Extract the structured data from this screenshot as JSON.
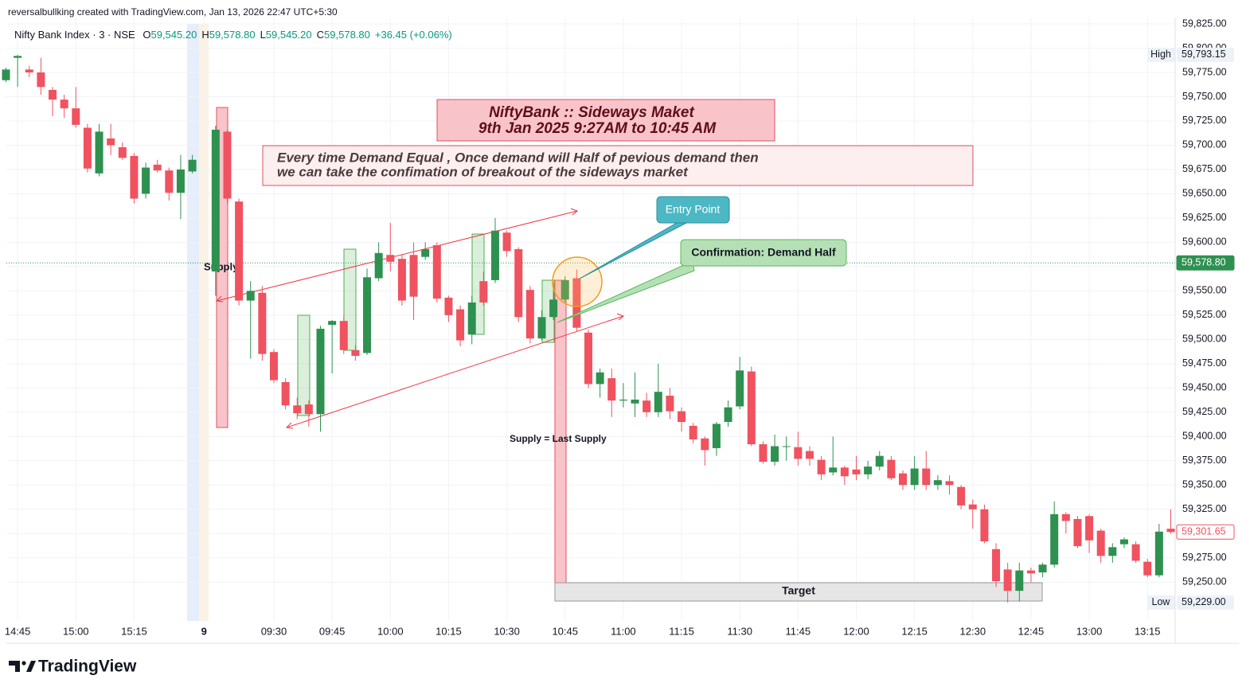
{
  "header": {
    "credit": "reversalbullking created with TradingView.com, Jan 13, 2026 22:47 UTC+5:30",
    "symbol": "Nifty Bank Index · 3 · NSE",
    "ohlc": [
      {
        "key": "O",
        "value": "59,545.20"
      },
      {
        "key": "H",
        "value": "59,578.80"
      },
      {
        "key": "L",
        "value": "59,545.20"
      },
      {
        "key": "C",
        "value": "59,578.80"
      }
    ],
    "change": "+36.45 (+0.06%)"
  },
  "footer": {
    "logo": "TradingView"
  },
  "chart_data": {
    "type": "candlestick",
    "categories": [
      null,
      "14:45",
      null,
      null,
      null,
      null,
      "15:00",
      null,
      null,
      null,
      null,
      "15:15",
      null,
      null,
      null,
      null,
      null,
      "9",
      null,
      null,
      null,
      null,
      null,
      "09:30",
      null,
      null,
      null,
      null,
      "09:45",
      null,
      null,
      null,
      null,
      "10:00",
      null,
      null,
      null,
      null,
      "10:15",
      null,
      null,
      null,
      null,
      "10:30",
      null,
      null,
      null,
      null,
      "10:45",
      null,
      null,
      null,
      null,
      "11:00",
      null,
      null,
      null,
      null,
      "11:15",
      null,
      null,
      null,
      null,
      "11:30",
      null,
      null,
      null,
      null,
      "11:45",
      null,
      null,
      null,
      null,
      "12:00",
      null,
      null,
      null,
      null,
      "12:15",
      null,
      null,
      null,
      null,
      "12:30",
      null,
      null,
      null,
      null,
      "12:45",
      null,
      null,
      null,
      null,
      "13:00",
      null,
      null,
      null,
      null,
      "13:15",
      null,
      null
    ],
    "open": [
      59767,
      59790,
      59778,
      59775,
      59757,
      59747,
      59738,
      59718,
      59671,
      59707,
      59698,
      59689,
      59650,
      59680,
      59674,
      59651,
      59673,
      null,
      59570,
      59714,
      59642,
      59540,
      59548,
      59487,
      59456,
      59432,
      59433,
      59423,
      59515,
      59519,
      59489,
      59486,
      59563,
      59587,
      59583,
      59587,
      59585,
      59597,
      59543,
      59531,
      59505,
      59560,
      59561,
      59610,
      59593,
      59551,
      59501,
      59523,
      59541,
      59563,
      59507,
      59454,
      59460,
      59437,
      59434,
      59437,
      59425,
      59442,
      59426,
      59411,
      59398,
      59388,
      59415,
      59431,
      59467,
      59392,
      59374,
      59390,
      59389,
      59385,
      59376,
      59363,
      59368,
      59366,
      59361,
      59369,
      59376,
      59362,
      59350,
      59367,
      59350,
      59354,
      59348,
      59330,
      59325,
      59284,
      59263,
      59241,
      59262,
      59260,
      59268,
      59320,
      59315,
      59318,
      59303,
      59277,
      59289,
      59289,
      59271,
      59257,
      59305
    ],
    "high": [
      59780,
      59793.15,
      59782,
      59790,
      59760,
      59752,
      59760,
      59722,
      59722,
      59722,
      59703,
      59692,
      59682,
      59685,
      59677,
      59690,
      59690,
      null,
      59720,
      59716,
      59645,
      59560,
      59555,
      59490,
      59460,
      59440,
      59437,
      59514,
      59520,
      59525,
      59494,
      59573,
      59600,
      59620,
      59588,
      59600,
      59600,
      59600,
      59545,
      59535,
      59545,
      59570,
      59625,
      59612,
      59595,
      59555,
      59530,
      59558,
      59565,
      59572,
      59510,
      59470,
      59470,
      59455,
      59466,
      59445,
      59475,
      59450,
      59430,
      59414,
      59400,
      59415,
      59437,
      59482,
      59472,
      59395,
      59402,
      59400,
      59405,
      59390,
      59380,
      59400,
      59370,
      59380,
      59375,
      59385,
      59380,
      59365,
      59380,
      59385,
      59360,
      59360,
      59350,
      59335,
      59330,
      59290,
      59270,
      59270,
      59265,
      59270,
      59333,
      59322,
      59318,
      59320,
      59305,
      59290,
      59296,
      59292,
      59274,
      59310,
      59325
    ],
    "low": [
      59765,
      59760,
      59770,
      59752,
      59730,
      59728,
      59718,
      59672,
      59668,
      59690,
      59685,
      59640,
      59645,
      59672,
      59643,
      59624,
      59671,
      null,
      59545,
      59640,
      59535,
      59480,
      59478,
      59455,
      59428,
      59418,
      59410,
      59405,
      59465,
      59485,
      59478,
      59484,
      59560,
      59570,
      59535,
      59520,
      59582,
      59538,
      59518,
      59493,
      59495,
      59535,
      59558,
      59585,
      59518,
      59496,
      59499,
      59520,
      59538,
      59508,
      59450,
      59440,
      59420,
      59430,
      59420,
      59420,
      59420,
      59418,
      59405,
      59393,
      59370,
      59380,
      59410,
      59428,
      59390,
      59372,
      59370,
      59375,
      59370,
      59370,
      59355,
      59360,
      59350,
      59355,
      59356,
      59365,
      59355,
      59345,
      59345,
      59345,
      59345,
      59340,
      59325,
      59305,
      59290,
      59245,
      59229,
      59230,
      59250,
      59255,
      59265,
      59300,
      59285,
      59280,
      59270,
      59270,
      59285,
      59270,
      59255,
      59255,
      59300
    ],
    "close": [
      59778,
      59792,
      59775,
      59760,
      59747,
      59738,
      59721,
      59676,
      59714,
      59700,
      59687,
      59645,
      59677,
      59674,
      59651,
      59675,
      59685,
      null,
      59716,
      59645,
      59540,
      59550,
      59485,
      59458,
      59432,
      59424,
      59423,
      59511,
      59519,
      59489,
      59483,
      59564,
      59589,
      59580,
      59540,
      59544,
      59593,
      59542,
      59525,
      59499,
      59538,
      59538,
      59612,
      59591,
      59523,
      59501,
      59523,
      59541,
      59561,
      59512,
      59454,
      59466,
      59437,
      59438,
      59438,
      59425,
      59446,
      59426,
      59415,
      59397,
      59386,
      59413,
      59430,
      59468,
      59392,
      59374,
      59390,
      59390,
      59377,
      59377,
      59361,
      59368,
      59359,
      59361,
      59369,
      59380,
      59357,
      59350,
      59367,
      59350,
      59355,
      59350,
      59329,
      59325,
      59292,
      59251,
      59241,
      59262,
      59259,
      59268,
      59320,
      59313,
      59287,
      59293,
      59277,
      59286,
      59294,
      59272,
      59257,
      59302,
      59301.65
    ],
    "up_color": "#2e9150",
    "down_color": "#f0525f",
    "ylim": [
      59210,
      59825
    ],
    "yticks": [
      {
        "value": 59825,
        "label": "59,825.00"
      },
      {
        "value": 59800,
        "label": "59,800.00"
      },
      {
        "value": 59775,
        "label": "59,775.00"
      },
      {
        "value": 59750,
        "label": "59,750.00"
      },
      {
        "value": 59725,
        "label": "59,725.00"
      },
      {
        "value": 59700,
        "label": "59,700.00"
      },
      {
        "value": 59675,
        "label": "59,675.00"
      },
      {
        "value": 59650,
        "label": "59,650.00"
      },
      {
        "value": 59625,
        "label": "59,625.00"
      },
      {
        "value": 59600,
        "label": "59,600.00"
      },
      {
        "value": 59575,
        "label": "59,575.00"
      },
      {
        "value": 59550,
        "label": "59,550.00"
      },
      {
        "value": 59525,
        "label": "59,525.00"
      },
      {
        "value": 59500,
        "label": "59,500.00"
      },
      {
        "value": 59475,
        "label": "59,475.00"
      },
      {
        "value": 59450,
        "label": "59,450.00"
      },
      {
        "value": 59425,
        "label": "59,425.00"
      },
      {
        "value": 59400,
        "label": "59,400.00"
      },
      {
        "value": 59375,
        "label": "59,375.00"
      },
      {
        "value": 59350,
        "label": "59,350.00"
      },
      {
        "value": 59325,
        "label": "59,325.00"
      },
      {
        "value": 59300,
        "label": "59,300.00"
      },
      {
        "value": 59275,
        "label": "59,275.00"
      },
      {
        "value": 59250,
        "label": "59,250.00"
      }
    ],
    "grid": true,
    "price_labels": [
      {
        "name": "High",
        "value": 59793.15,
        "label": "59,793.15",
        "color": "#eef2f8",
        "filled": false
      },
      {
        "value": 59578.8,
        "label": "59,578.80",
        "color": "#2e9150",
        "filled": true
      },
      {
        "value": 59301.65,
        "label": "59,301.65",
        "color": "#f0525f",
        "filled": false
      },
      {
        "name": "Low",
        "value": 59229,
        "label": "59,229.00",
        "color": "#eef2f8",
        "filled": false
      }
    ],
    "annotations": {
      "title_lines": [
        "NiftyBank :: Sideways Maket",
        "9th Jan 2025 9:27AM to 10:45 AM"
      ],
      "note_lines": [
        "Every time Demand Equal , Once demand will Half of pevious demand then",
        "we can take the confimation of breakout of the sideways market"
      ],
      "entry": "Entry Point",
      "confirmation": "Confirmation: Demand Half",
      "supply": "Supply",
      "supply_note": "Supply = Last Supply",
      "target": "Target"
    }
  }
}
